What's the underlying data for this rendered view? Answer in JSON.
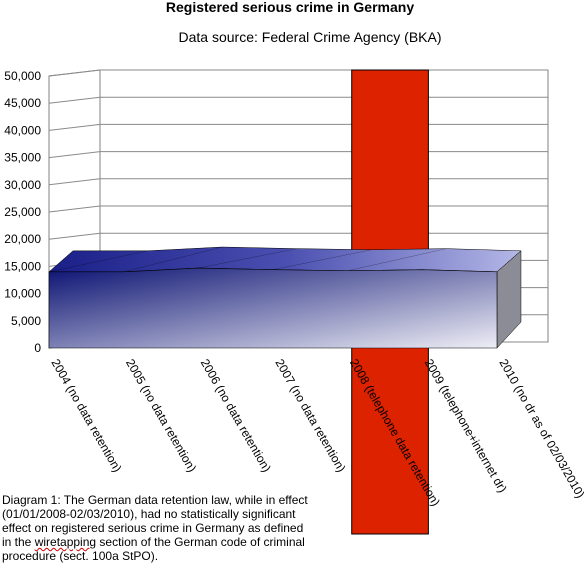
{
  "chart_data": {
    "type": "area",
    "style": "3d",
    "title": "Registered serious crime in Germany",
    "subtitle": "Data source: Federal Crime Agency (BKA)",
    "xlabel": "",
    "ylabel": "",
    "ylim": [
      0,
      50000
    ],
    "yticks": [
      "0",
      "5,000",
      "10,000",
      "15,000",
      "20,000",
      "25,000",
      "30,000",
      "35,000",
      "40,000",
      "45,000",
      "50,000"
    ],
    "categories": [
      "2004 (no data retention)",
      "2005 (no data retention)",
      "2006 (no data retention)",
      "2007 (no data retention)",
      "2008 (telephone data retention)",
      "2009 (telephone+internet dr)",
      "2010 (no dr as of 02/03/2010)"
    ],
    "values": [
      14000,
      14000,
      14700,
      14400,
      14200,
      14400,
      14000
    ],
    "highlight": {
      "categories": [
        "2008 (telephone data retention)",
        "2009 (telephone+internet dr)"
      ],
      "color": "#dd2200"
    },
    "grid": true,
    "colors": {
      "area_dark": "#0d1473",
      "area_light": "#eeeef6",
      "top_face": "#6f74c8",
      "side_face": "#8c8c96"
    }
  },
  "caption": {
    "before": "Diagram 1: The German data retention law, while in effect (01/01/2008-02/03/2010), had no statistically significant effect on registered serious crime in Germany as defined in the ",
    "marked": "wiretapping",
    "after": " section of the German code of criminal procedure (sect. 100a StPO)."
  }
}
